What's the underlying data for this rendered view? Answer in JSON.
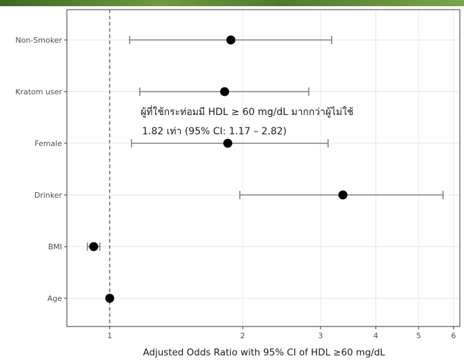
{
  "chart_data": {
    "type": "forest",
    "title": "",
    "xlabel": "Adjusted Odds Ratio with 95% CI of HDL ≥60 mg/dL",
    "ylabel": "",
    "x_scale": "log",
    "xlim": [
      0.8,
      6.2
    ],
    "x_ticks": [
      {
        "value": 1,
        "label": "1"
      },
      {
        "value": 2,
        "label": "2"
      },
      {
        "value": 3,
        "label": "3"
      },
      {
        "value": 4,
        "label": "4"
      },
      {
        "value": 5,
        "label": "5"
      },
      {
        "value": 6,
        "label": "6"
      }
    ],
    "reference_line": 1,
    "grid": true,
    "legend": "none",
    "categories": [
      "Non-Smoker",
      "Kratom user",
      "Female",
      "Drinker",
      "BMI",
      "Age"
    ],
    "estimates": [
      {
        "label": "Non-Smoker",
        "or": 1.88,
        "lower": 1.11,
        "upper": 3.18
      },
      {
        "label": "Kratom user",
        "or": 1.82,
        "lower": 1.17,
        "upper": 2.82
      },
      {
        "label": "Female",
        "or": 1.85,
        "lower": 1.12,
        "upper": 3.12
      },
      {
        "label": "Drinker",
        "or": 3.37,
        "lower": 1.97,
        "upper": 5.68
      },
      {
        "label": "BMI",
        "or": 0.92,
        "lower": 0.89,
        "upper": 0.95
      },
      {
        "label": "Age",
        "or": 1.0,
        "lower": 1.0,
        "upper": 1.0
      }
    ],
    "annotation": {
      "line1": "ผู้ที่ใช้กระท่อมมี HDL ≥ 60 mg/dL มากกว่าผู้ไม่ใช้",
      "line2": "1.82 เท่า (95% CI: 1.17 – 2.82)"
    },
    "colors": {
      "point": "#000000",
      "whisker": "#7f7f7f",
      "grid": "#e6e6e6",
      "axis": "#333333",
      "reference": "#333333",
      "banner": "#4e7a2c"
    }
  }
}
